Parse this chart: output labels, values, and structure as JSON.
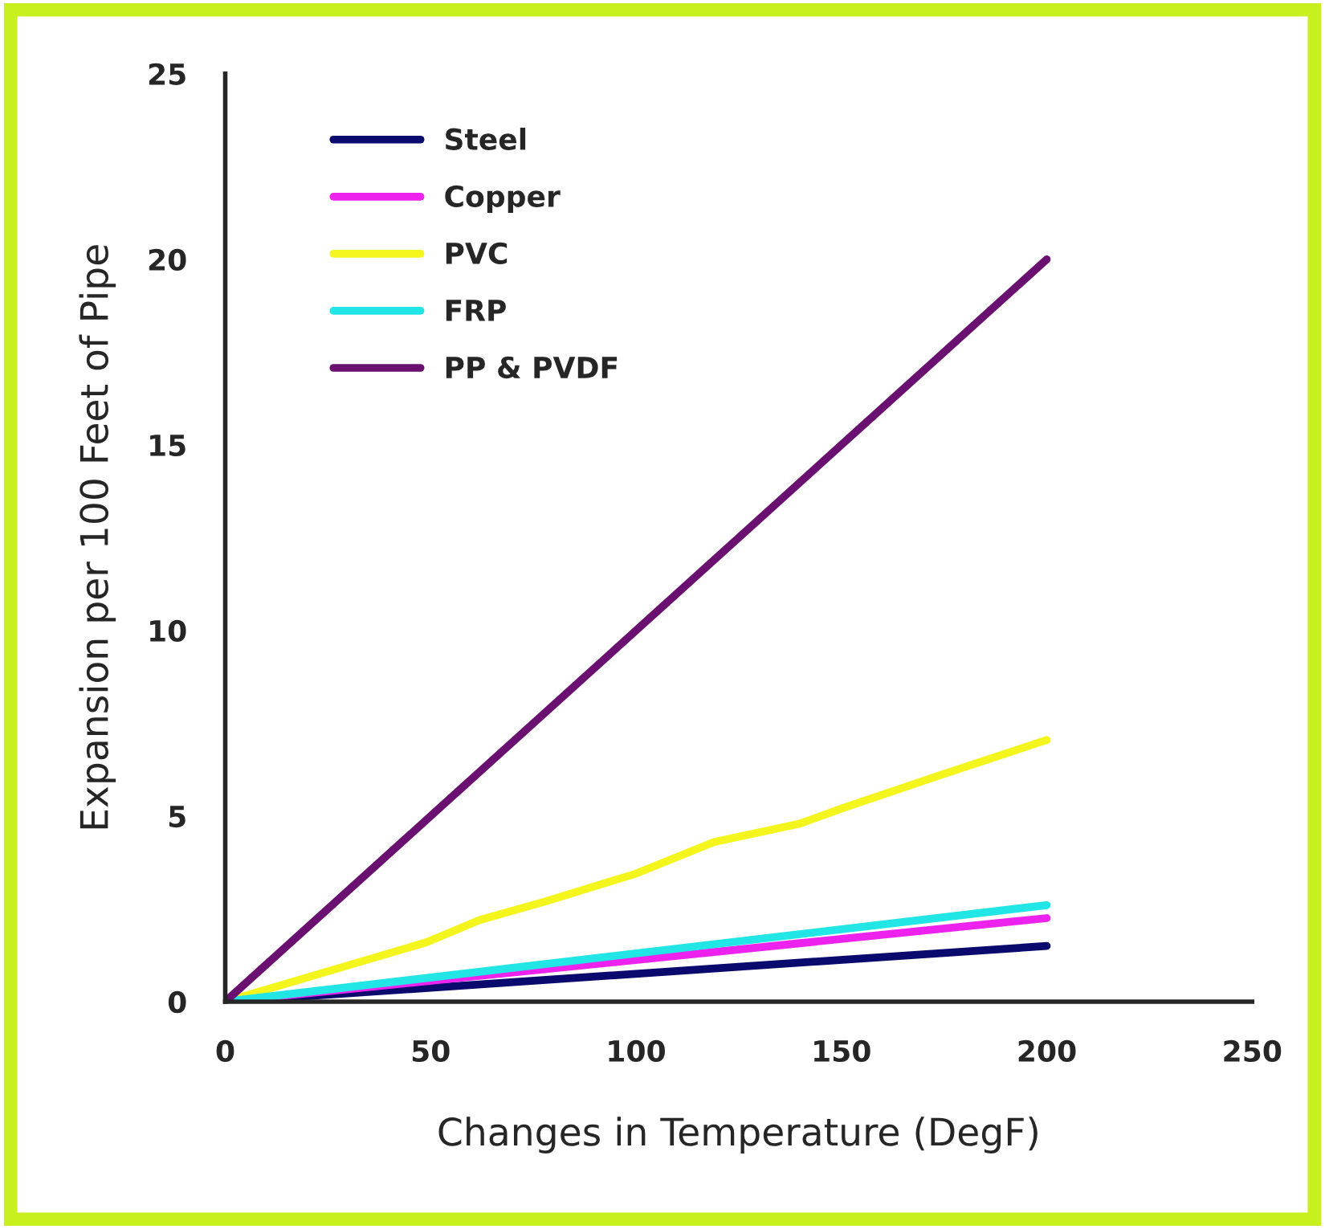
{
  "chart_data": {
    "type": "line",
    "xlabel": "Changes in Temperature (DegF)",
    "ylabel": "Expansion per 100 Feet of Pipe",
    "xlim": [
      0,
      250
    ],
    "ylim": [
      0,
      25
    ],
    "xticks": [
      0,
      50,
      100,
      150,
      200,
      250
    ],
    "yticks": [
      0,
      5,
      10,
      15,
      20,
      25
    ],
    "grid": false,
    "legend": "top left",
    "marker": "none",
    "line_style": "solid",
    "series": [
      {
        "name": "Steel",
        "color": "#0a0a6e",
        "x": [
          0,
          200
        ],
        "values": [
          0,
          1.5
        ]
      },
      {
        "name": "Copper",
        "color": "#ee22ee",
        "x": [
          0,
          200
        ],
        "values": [
          0,
          2.25
        ]
      },
      {
        "name": "PVC",
        "color": "#f5f51e",
        "x": [
          0,
          49,
          62,
          78,
          100,
          119,
          140,
          150,
          174,
          200
        ],
        "values": [
          0,
          1.6,
          2.2,
          2.7,
          3.45,
          4.3,
          4.8,
          5.2,
          6.1,
          7.05
        ]
      },
      {
        "name": "FRP",
        "color": "#22e6e6",
        "x": [
          0,
          200
        ],
        "values": [
          0,
          2.6
        ]
      },
      {
        "name": "PP & PVDF",
        "color": "#6a1070",
        "x": [
          0,
          200
        ],
        "values": [
          0,
          20
        ]
      }
    ]
  }
}
